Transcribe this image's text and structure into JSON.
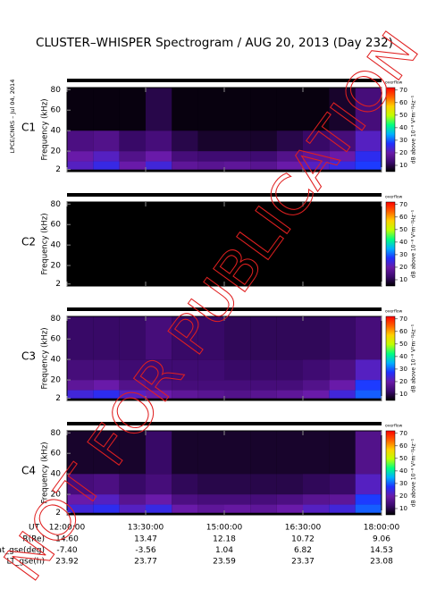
{
  "title": "CLUSTER–WHISPER Spectrogram / AUG 20, 2013 (Day 232)",
  "side_note": "LPCE/CNRS – Jul 04, 2014",
  "watermark": "NOT FOR PUBLICATION",
  "time_axis": {
    "label": "UT",
    "xlim": [
      12,
      18
    ],
    "xticks": [
      {
        "value": 12,
        "label": "12:00:00"
      },
      {
        "value": 13.5,
        "label": "13:30:00"
      },
      {
        "value": 15,
        "label": "15:00:00"
      },
      {
        "value": 16.5,
        "label": "16:30:00"
      },
      {
        "value": 18,
        "label": "18:00:00"
      }
    ]
  },
  "ephemeris": [
    {
      "label": "R(Re)",
      "values": [
        "14.60",
        "13.47",
        "12.18",
        "10.72",
        "9.06"
      ]
    },
    {
      "label": "Lat_gse(deg)",
      "values": [
        "-7.40",
        "-3.56",
        "1.04",
        "6.82",
        "14.53"
      ]
    },
    {
      "label": "LT_gse(h)",
      "values": [
        "23.92",
        "23.77",
        "23.59",
        "23.37",
        "23.08"
      ]
    }
  ],
  "chart_data": [
    {
      "type": "heatmap",
      "label": "C1",
      "label_color": "#000000",
      "y_label": "Frequency (kHz)",
      "ylim": [
        0,
        82
      ],
      "yticks": [
        2,
        20,
        40,
        60,
        80
      ],
      "x_bins": [
        12,
        12.5,
        13,
        13.5,
        14,
        14.5,
        15,
        15.5,
        16,
        16.5,
        17,
        17.5,
        18
      ],
      "y_bins": [
        2,
        10,
        20,
        40,
        82
      ],
      "z": [
        [
          22,
          25,
          20,
          24,
          18,
          17,
          18,
          17,
          20,
          22,
          25,
          28
        ],
        [
          20,
          22,
          16,
          20,
          14,
          13,
          13,
          13,
          16,
          18,
          20,
          26
        ],
        [
          15,
          16,
          12,
          14,
          10,
          8,
          8,
          8,
          10,
          12,
          14,
          22
        ],
        [
          6,
          6,
          6,
          10,
          6,
          6,
          6,
          6,
          6,
          6,
          8,
          14
        ]
      ],
      "colorbar": {
        "label": "dB above 10⁻⁸ V²m⁻²Hz⁻¹",
        "top_label": "overflow",
        "clim": [
          5,
          72
        ],
        "ticks": [
          10,
          20,
          30,
          40,
          50,
          60,
          70
        ]
      },
      "colormap": [
        "#000000",
        "#3c0a6e",
        "#6a1aa8",
        "#2030ff",
        "#00b0ff",
        "#00ff80",
        "#c0ff00",
        "#ffd000",
        "#ff6000",
        "#ff0000"
      ]
    },
    {
      "type": "heatmap",
      "label": "C2",
      "label_color": "#000000",
      "y_label": "Frequency (kHz)",
      "ylim": [
        0,
        82
      ],
      "yticks": [
        2,
        20,
        40,
        60,
        80
      ],
      "x_bins": [
        12,
        12.5,
        13,
        13.5,
        14,
        14.5,
        15,
        15.5,
        16,
        16.5,
        17,
        17.5,
        18
      ],
      "y_bins": [
        2,
        10,
        20,
        40,
        82
      ],
      "z": [
        [
          0,
          0,
          0,
          0,
          0,
          0,
          0,
          0,
          0,
          0,
          0,
          0
        ],
        [
          0,
          0,
          0,
          0,
          0,
          0,
          0,
          0,
          0,
          0,
          0,
          0
        ],
        [
          0,
          0,
          0,
          0,
          0,
          0,
          0,
          0,
          0,
          0,
          0,
          0
        ],
        [
          0,
          0,
          0,
          0,
          0,
          0,
          0,
          0,
          0,
          0,
          0,
          0
        ]
      ],
      "colorbar": {
        "label": "dB above 10⁻⁸ V²m⁻²Hz⁻¹",
        "top_label": "overflow",
        "clim": [
          5,
          72
        ],
        "ticks": [
          10,
          20,
          30,
          40,
          50,
          60,
          70
        ]
      },
      "colormap": [
        "#000000",
        "#3c0a6e",
        "#6a1aa8",
        "#2030ff",
        "#00b0ff",
        "#00ff80",
        "#c0ff00",
        "#ffd000",
        "#ff6000",
        "#ff0000"
      ]
    },
    {
      "type": "heatmap",
      "label": "C3",
      "label_color": "#22aa44",
      "y_label": "Frequency (kHz)",
      "ylim": [
        0,
        82
      ],
      "yticks": [
        2,
        20,
        40,
        60,
        80
      ],
      "x_bins": [
        12,
        12.5,
        13,
        13.5,
        14,
        14.5,
        15,
        15.5,
        16,
        16.5,
        17,
        17.5,
        18
      ],
      "y_bins": [
        2,
        10,
        20,
        40,
        82
      ],
      "z": [
        [
          24,
          26,
          22,
          20,
          18,
          17,
          16,
          17,
          18,
          20,
          24,
          30
        ],
        [
          18,
          20,
          16,
          15,
          14,
          14,
          14,
          14,
          14,
          16,
          20,
          28
        ],
        [
          14,
          14,
          13,
          13,
          13,
          13,
          12,
          12,
          12,
          13,
          15,
          22
        ],
        [
          12,
          12,
          12,
          14,
          12,
          12,
          11,
          11,
          11,
          11,
          12,
          14
        ]
      ],
      "colorbar": {
        "label": "dB above 10⁻⁸ V²m⁻²Hz⁻¹",
        "top_label": "overflow",
        "clim": [
          5,
          72
        ],
        "ticks": [
          10,
          20,
          30,
          40,
          50,
          60,
          70
        ]
      },
      "colormap": [
        "#000000",
        "#3c0a6e",
        "#6a1aa8",
        "#2030ff",
        "#00b0ff",
        "#00ff80",
        "#c0ff00",
        "#ffd000",
        "#ff6000",
        "#ff0000"
      ]
    },
    {
      "type": "heatmap",
      "label": "C4",
      "label_color": "#000000",
      "y_label": "Frequency (kHz)",
      "ylim": [
        0,
        82
      ],
      "yticks": [
        2,
        20,
        40,
        60,
        80
      ],
      "x_bins": [
        12,
        12.5,
        13,
        13.5,
        14,
        14.5,
        15,
        15.5,
        16,
        16.5,
        17,
        17.5,
        18
      ],
      "y_bins": [
        2,
        10,
        20,
        40,
        82
      ],
      "z": [
        [
          24,
          26,
          22,
          25,
          20,
          18,
          19,
          18,
          20,
          22,
          24,
          30
        ],
        [
          20,
          22,
          17,
          20,
          15,
          14,
          14,
          14,
          15,
          17,
          18,
          28
        ],
        [
          14,
          15,
          12,
          14,
          11,
          10,
          10,
          10,
          10,
          11,
          12,
          22
        ],
        [
          8,
          8,
          8,
          12,
          8,
          8,
          8,
          8,
          8,
          8,
          8,
          16
        ]
      ],
      "colorbar": {
        "label": "dB above 10⁻⁸ V²m⁻²Hz⁻¹",
        "top_label": "overflow",
        "clim": [
          5,
          72
        ],
        "ticks": [
          10,
          20,
          30,
          40,
          50,
          60,
          70
        ]
      },
      "colormap": [
        "#000000",
        "#3c0a6e",
        "#6a1aa8",
        "#2030ff",
        "#00b0ff",
        "#00ff80",
        "#c0ff00",
        "#ffd000",
        "#ff6000",
        "#ff0000"
      ]
    }
  ]
}
